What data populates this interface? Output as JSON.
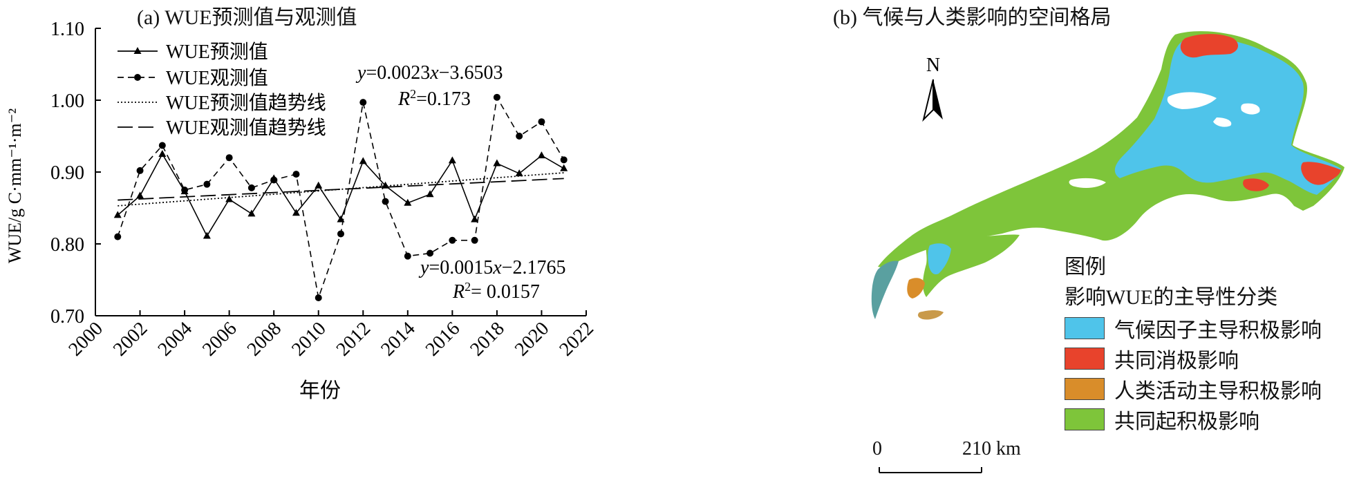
{
  "panel_a_title": "(a) WUE预测值与观测值",
  "panel_b_title": "(b) 气候与人类影响的空间格局",
  "chart_data": {
    "type": "line",
    "title": "(a) WUE预测值与观测值",
    "xlabel": "年份",
    "ylabel": "WUE/g C·mm⁻¹·m⁻²",
    "xlim": [
      2000,
      2022
    ],
    "ylim": [
      0.7,
      1.1
    ],
    "xticks": [
      2000,
      2002,
      2004,
      2006,
      2008,
      2010,
      2012,
      2014,
      2016,
      2018,
      2020,
      2022
    ],
    "yticks": [
      0.7,
      0.8,
      0.9,
      1.0,
      1.1
    ],
    "ytick_labels": [
      "0.70",
      "0.80",
      "0.90",
      "1.00",
      "1.10"
    ],
    "x": [
      2001,
      2002,
      2003,
      2004,
      2005,
      2006,
      2007,
      2008,
      2009,
      2010,
      2011,
      2012,
      2013,
      2014,
      2015,
      2016,
      2017,
      2018,
      2019,
      2020,
      2021
    ],
    "series": [
      {
        "name": "WUE预测值",
        "style": "solid-triangle",
        "values": [
          0.84,
          0.867,
          0.925,
          0.873,
          0.811,
          0.862,
          0.842,
          0.891,
          0.843,
          0.881,
          0.834,
          0.915,
          0.881,
          0.857,
          0.869,
          0.916,
          0.834,
          0.912,
          0.898,
          0.923,
          0.905
        ]
      },
      {
        "name": "WUE观测值",
        "style": "dashed-circle",
        "values": [
          0.81,
          0.902,
          0.937,
          0.875,
          0.883,
          0.92,
          0.878,
          0.889,
          0.897,
          0.725,
          0.814,
          0.997,
          0.859,
          0.783,
          0.787,
          0.805,
          0.805,
          1.004,
          0.95,
          0.97,
          0.917
        ]
      }
    ],
    "trendlines": [
      {
        "name": "WUE预测值趋势线",
        "style": "dotted",
        "slope": 0.0023,
        "intercept": -3.6503,
        "y_start": 0.853,
        "y_end": 0.899
      },
      {
        "name": "WUE观测值趋势线",
        "style": "long-dash",
        "slope": 0.0015,
        "intercept": -2.1765,
        "y_start": 0.861,
        "y_end": 0.891
      }
    ],
    "legend": [
      "WUE预测值",
      "WUE观测值",
      "WUE预测值趋势线",
      "WUE观测值趋势线"
    ],
    "annotations": {
      "eq1_prefix": "y",
      "eq1_mid": "=0.0023",
      "eq1_x": "x",
      "eq1_rest": "−3.6503",
      "r2_1_label": "R",
      "r2_1_sup": "2",
      "r2_1_value": "=0.173",
      "eq2_prefix": "y",
      "eq2_mid": "=0.0015",
      "eq2_x": "x",
      "eq2_rest": "−2.1765",
      "r2_2_label": "R",
      "r2_2_sup": "2",
      "r2_2_value": "= 0.0157"
    }
  },
  "map": {
    "north_label": "N",
    "legend_title": "图例",
    "legend_subtitle": "影响WUE的主导性分类",
    "legend_items": [
      {
        "label": "气候因子主导积极影响",
        "color": "#4fc4ea"
      },
      {
        "label": "共同消极影响",
        "color": "#e8432c"
      },
      {
        "label": "人类活动主导积极影响",
        "color": "#d98d2a"
      },
      {
        "label": "共同起积极影响",
        "color": "#7ec53a"
      }
    ],
    "scale_start": "0",
    "scale_end": "210 km"
  }
}
